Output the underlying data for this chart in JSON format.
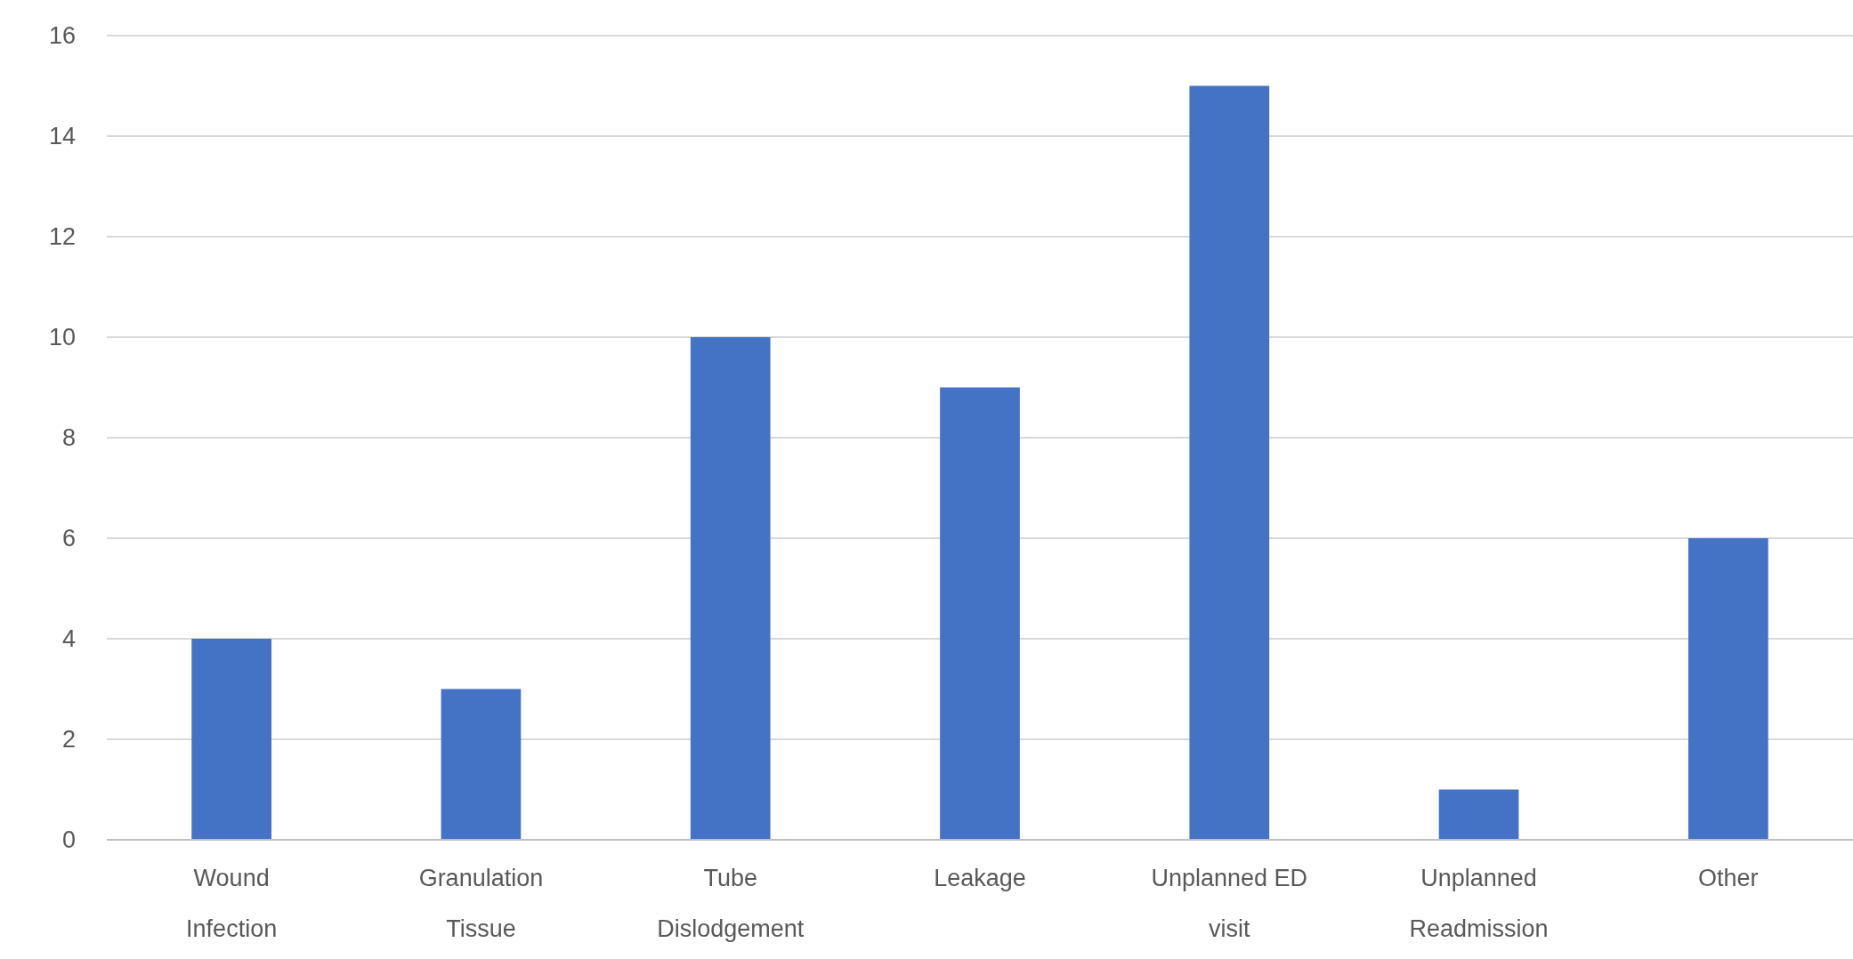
{
  "chart_data": {
    "type": "bar",
    "categories": [
      "Wound Infection",
      "Granulation Tissue",
      "Tube Dislodgement",
      "Leakage",
      "Unplanned ED visit",
      "Unplanned Readmission",
      "Other"
    ],
    "values": [
      4,
      3,
      10,
      9,
      15,
      1,
      6
    ],
    "color": "#4472c4",
    "ylim": [
      0,
      16
    ],
    "yticks": [
      0,
      2,
      4,
      6,
      8,
      10,
      12,
      14,
      16
    ],
    "grid": "y"
  }
}
